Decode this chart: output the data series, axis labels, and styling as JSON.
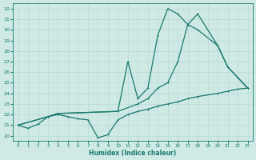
{
  "xlabel": "Humidex (Indice chaleur)",
  "background_color": "#cfe9e5",
  "grid_color": "#b8d8d4",
  "line_color": "#1a7a6e",
  "xlim": [
    -0.5,
    23.5
  ],
  "ylim": [
    19.5,
    32.5
  ],
  "xticks": [
    0,
    1,
    2,
    3,
    4,
    5,
    6,
    7,
    8,
    9,
    10,
    11,
    12,
    13,
    14,
    15,
    16,
    17,
    18,
    19,
    20,
    21,
    22,
    23
  ],
  "yticks": [
    20,
    21,
    22,
    23,
    24,
    25,
    26,
    27,
    28,
    29,
    30,
    31,
    32
  ],
  "curve1": {
    "x": [
      0,
      1,
      2,
      3,
      4,
      5,
      6,
      7,
      8,
      9,
      10,
      11,
      12,
      13,
      14,
      15,
      16,
      17,
      18,
      20,
      21,
      22,
      23
    ],
    "y": [
      21.0,
      20.7,
      21.1,
      21.8,
      22.0,
      21.8,
      21.6,
      21.5,
      19.8,
      20.1,
      21.5,
      22.0,
      22.3,
      22.5,
      22.8,
      23.0,
      23.2,
      23.5,
      23.7,
      24.0,
      24.2,
      24.4,
      24.5
    ]
  },
  "curve2": {
    "x": [
      0,
      3,
      4,
      10,
      12,
      13,
      14,
      15,
      16,
      17,
      18,
      20,
      21,
      22,
      23
    ],
    "y": [
      21.0,
      21.8,
      22.1,
      22.3,
      23.0,
      23.5,
      24.5,
      25.0,
      27.0,
      30.5,
      31.5,
      28.5,
      26.5,
      25.5,
      24.5
    ]
  },
  "curve3": {
    "x": [
      0,
      3,
      4,
      10,
      11,
      12,
      13,
      14,
      15,
      16,
      17,
      18,
      20,
      21,
      22,
      23
    ],
    "y": [
      21.0,
      21.8,
      22.1,
      22.3,
      27.0,
      23.5,
      24.5,
      29.5,
      32.0,
      31.5,
      30.5,
      30.0,
      28.5,
      26.5,
      25.5,
      24.5
    ]
  }
}
